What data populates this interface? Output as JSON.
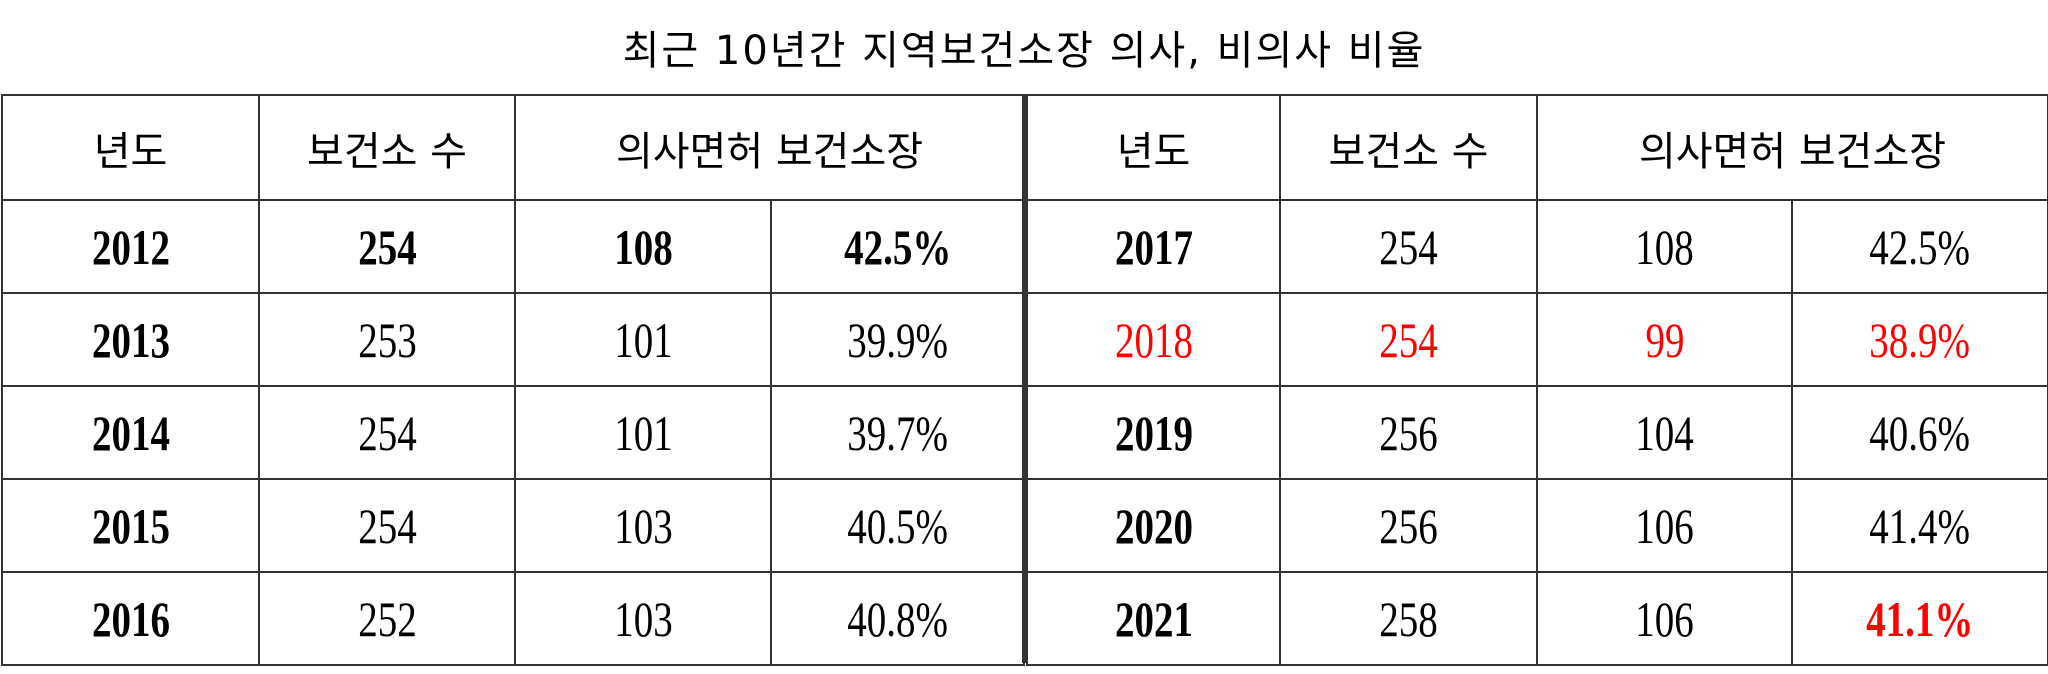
{
  "title": "최근 10년간 지역보건소장 의사, 비의사 비율",
  "headers": {
    "year": "년도",
    "count": "보건소 수",
    "doctor": "의사면허 보건소장"
  },
  "colors": {
    "highlight": "#ff0000"
  },
  "left_rows": [
    {
      "year": "2012",
      "count": "254",
      "doctors": "108",
      "ratio": "42.5%"
    },
    {
      "year": "2013",
      "count": "253",
      "doctors": "101",
      "ratio": "39.9%"
    },
    {
      "year": "2014",
      "count": "254",
      "doctors": "101",
      "ratio": "39.7%"
    },
    {
      "year": "2015",
      "count": "254",
      "doctors": "103",
      "ratio": "40.5%"
    },
    {
      "year": "2016",
      "count": "252",
      "doctors": "103",
      "ratio": "40.8%"
    }
  ],
  "right_rows": [
    {
      "year": "2017",
      "count": "254",
      "doctors": "108",
      "ratio": "42.5%"
    },
    {
      "year": "2018",
      "count": "254",
      "doctors": "99",
      "ratio": "38.9%"
    },
    {
      "year": "2019",
      "count": "256",
      "doctors": "104",
      "ratio": "40.6%"
    },
    {
      "year": "2020",
      "count": "256",
      "doctors": "106",
      "ratio": "41.4%"
    },
    {
      "year": "2021",
      "count": "258",
      "doctors": "106",
      "ratio": "41.1%"
    }
  ]
}
